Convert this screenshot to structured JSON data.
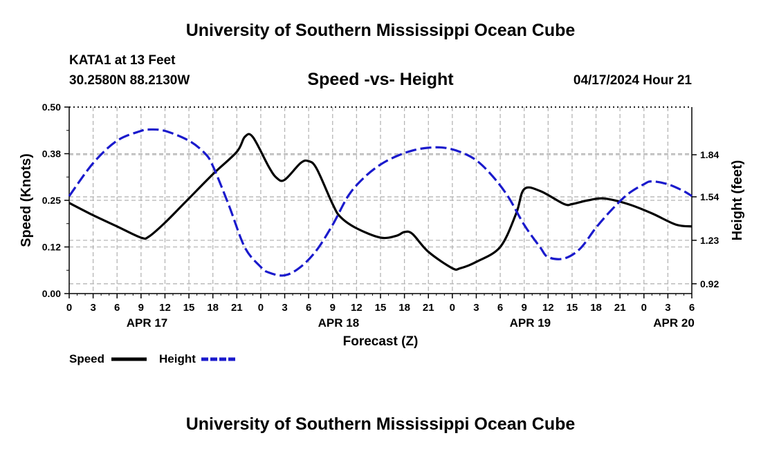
{
  "header": {
    "title": "University of Southern Mississippi Ocean Cube",
    "station": "KATA1 at 13 Feet",
    "coords": "30.2580N  88.2130W",
    "subtitle": "Speed -vs- Height",
    "datetime": "04/17/2024 Hour 21"
  },
  "footer": {
    "title": "University of Southern Mississippi Ocean Cube"
  },
  "chart_data": {
    "type": "line",
    "xlabel": "Forecast (Z)",
    "ylabel_left": "Speed (Knots)",
    "ylabel_right": "Height (feet)",
    "x_range": [
      0,
      78
    ],
    "x_tick_step": 3,
    "x_tick_labels": [
      "0",
      "3",
      "6",
      "9",
      "12",
      "15",
      "18",
      "21",
      "0",
      "3",
      "6",
      "9",
      "12",
      "15",
      "18",
      "21",
      "0",
      "3",
      "6",
      "9",
      "12",
      "15",
      "18",
      "21",
      "0",
      "3",
      "6"
    ],
    "date_labels": [
      {
        "label": "APR 17",
        "x": 9.75
      },
      {
        "label": "APR 18",
        "x": 33.75
      },
      {
        "label": "APR 19",
        "x": 57.75
      },
      {
        "label": "APR 20",
        "x": 75.75
      }
    ],
    "y_left": {
      "range": [
        0,
        0.5
      ],
      "ticks": [
        0,
        0.125,
        0.25,
        0.375,
        0.5
      ],
      "tick_labels": [
        "0.00",
        "0.12",
        "0.25",
        "0.38",
        "0.50"
      ]
    },
    "y_right": {
      "range": [
        0.85,
        2.18
      ],
      "ticks": [
        0.92,
        1.23,
        1.54,
        1.84
      ],
      "tick_labels": [
        "0.92",
        "1.23",
        "1.54",
        "1.84"
      ]
    },
    "grid": true,
    "legend_position": "bottom-left",
    "series": [
      {
        "name": "Speed",
        "axis": "left",
        "color": "#000000",
        "dash": "solid",
        "x": [
          0,
          3,
          6,
          9,
          10,
          12,
          15,
          18,
          21,
          22,
          23,
          25,
          26,
          27,
          29,
          30,
          31,
          33,
          34,
          36,
          39,
          41,
          42,
          43,
          45,
          48,
          49,
          51,
          54,
          56,
          57,
          59,
          62,
          63,
          64,
          65,
          67,
          70,
          73,
          76,
          78
        ],
        "y": [
          0.243,
          0.21,
          0.18,
          0.15,
          0.153,
          0.19,
          0.255,
          0.32,
          0.38,
          0.42,
          0.42,
          0.34,
          0.31,
          0.305,
          0.35,
          0.355,
          0.335,
          0.24,
          0.205,
          0.175,
          0.15,
          0.155,
          0.165,
          0.16,
          0.112,
          0.068,
          0.068,
          0.085,
          0.125,
          0.215,
          0.28,
          0.275,
          0.24,
          0.24,
          0.245,
          0.25,
          0.255,
          0.24,
          0.215,
          0.185,
          0.18
        ]
      },
      {
        "name": "Height",
        "axis": "right",
        "color": "#1a1acc",
        "dash": "dashed",
        "x": [
          0,
          3,
          6,
          9,
          10,
          12,
          15,
          17,
          18,
          20,
          22,
          24,
          25,
          27,
          29,
          31,
          33,
          35,
          37,
          39,
          41,
          43,
          45,
          47,
          49,
          51,
          53,
          55,
          57,
          59,
          60,
          62,
          64,
          66,
          68,
          70,
          72,
          73,
          75,
          77,
          78
        ],
        "y": [
          1.545,
          1.78,
          1.94,
          2.01,
          2.02,
          2.01,
          1.94,
          1.85,
          1.76,
          1.48,
          1.18,
          1.04,
          1.0,
          0.98,
          1.04,
          1.16,
          1.34,
          1.55,
          1.68,
          1.77,
          1.83,
          1.87,
          1.89,
          1.89,
          1.86,
          1.8,
          1.69,
          1.54,
          1.34,
          1.18,
          1.11,
          1.1,
          1.17,
          1.32,
          1.45,
          1.56,
          1.63,
          1.65,
          1.63,
          1.58,
          1.545
        ]
      }
    ]
  }
}
